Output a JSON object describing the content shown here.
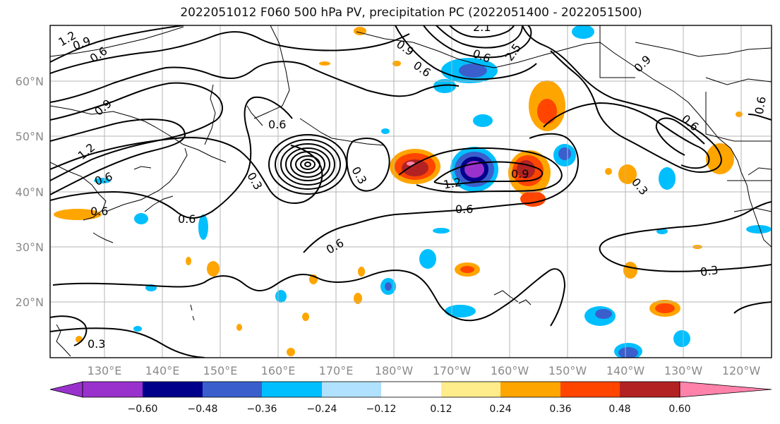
{
  "title": "2022051012 F060 500 hPa PV, precipitation PC (2022051400 - 2022051500)",
  "lat_labels": [
    "60°N",
    "50°N",
    "40°N",
    "30°N",
    "20°N"
  ],
  "lon_labels": [
    "130°E",
    "140°E",
    "150°E",
    "160°E",
    "170°E",
    "180°W",
    "170°W",
    "160°W",
    "150°W",
    "140°W",
    "130°W",
    "120°W"
  ],
  "contour_labels": [
    "1.2",
    "0.9",
    "0.6",
    "0.9",
    "0.6",
    "2.1",
    "0.6",
    "0.9",
    "2.5",
    "0.6",
    "0.9",
    "0.6",
    "0.6",
    "0.6",
    "0.3",
    "0.3",
    "1.2",
    "0.9",
    "0.6",
    "0.6",
    "0.6",
    "0.3",
    "0.6",
    "1.2",
    "0.3",
    "0.3"
  ],
  "colorbar": {
    "ticks": [
      "−0.60",
      "−0.48",
      "−0.36",
      "−0.24",
      "−0.12",
      "0.12",
      "0.24",
      "0.36",
      "0.48",
      "0.60"
    ],
    "colors": [
      "#9932cc",
      "#00008b",
      "#3a5fcd",
      "#00bfff",
      "#b0e2ff",
      "#ffffff",
      "#ffec8b",
      "#ffa500",
      "#ff4500",
      "#b22222",
      "#ff82ab"
    ]
  }
}
